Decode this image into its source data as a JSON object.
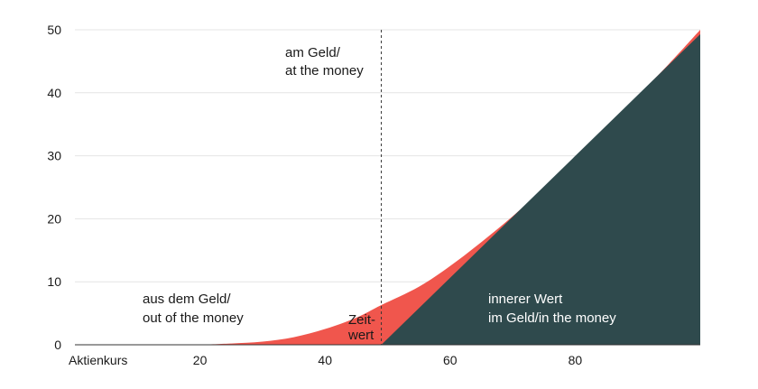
{
  "chart_data": {
    "type": "area",
    "title": "",
    "xlabel": "Aktienkurs",
    "ylabel": "",
    "xlim": [
      0,
      100
    ],
    "ylim": [
      0,
      50
    ],
    "grid": true,
    "strike": 49,
    "x_ticks": [
      20,
      40,
      60,
      80
    ],
    "y_ticks": [
      0,
      10,
      20,
      30,
      40,
      50
    ],
    "series": [
      {
        "name": "Zeitwert",
        "color": "#f0564d",
        "x": [
          20,
          25,
          30,
          35,
          40,
          45,
          49,
          55,
          60,
          65,
          70,
          75,
          80,
          85,
          90,
          95,
          100
        ],
        "y": [
          0,
          0.2,
          0.5,
          1.2,
          2.5,
          4.3,
          6.3,
          9.2,
          12.5,
          16.3,
          20.4,
          24.9,
          29.6,
          34.5,
          39.5,
          44.6,
          50
        ]
      },
      {
        "name": "innerer Wert",
        "color": "#2f4a4d",
        "x": [
          49,
          100
        ],
        "y": [
          0,
          49.3
        ]
      }
    ],
    "annotations": {
      "atm": [
        "am Geld/",
        "at the money"
      ],
      "otm": [
        "aus dem Geld/",
        "out of the money"
      ],
      "time_value": [
        "Zeit-",
        "wert"
      ],
      "intrinsic": [
        "innerer Wert",
        "im Geld/in the money"
      ]
    },
    "colors": {
      "grid": "#e4e4e4",
      "axis": "#333333",
      "strike_line": "#333333",
      "text": "#1a1a1a",
      "text_on_dark": "#ffffff"
    }
  }
}
